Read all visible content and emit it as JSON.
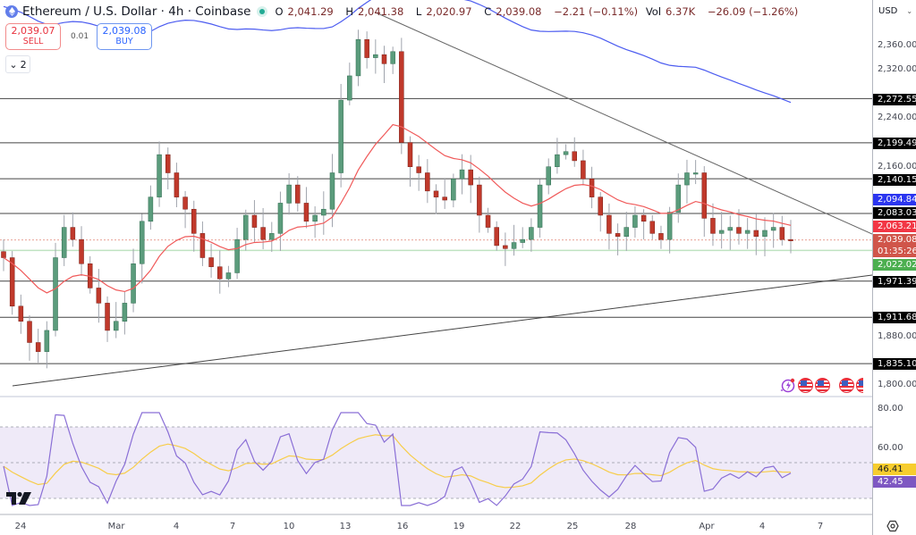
{
  "header": {
    "title": "Ethereum / U.S. Dollar · 4h · Coinbase",
    "open_label": "O",
    "open": "2,041.29",
    "high_label": "H",
    "high": "2,041.38",
    "low_label": "L",
    "low": "2,020.97",
    "close_label": "C",
    "close": "2,039.08",
    "change": "−2.21 (−0.11%)",
    "vol_label": "Vol",
    "vol": "6.37K",
    "vol_change": "−26.09 (−1.26%)"
  },
  "trade": {
    "sell_price": "2,039.07",
    "sell_label": "SELL",
    "spread": "0.01",
    "buy_price": "2,039.08",
    "buy_label": "BUY"
  },
  "collapse": {
    "count": "2"
  },
  "currency": "USD",
  "colors": {
    "up": "#5b9c7c",
    "down": "#c0392b",
    "ma_fast": "#f05a5a",
    "ma_slow": "#4c5cf0",
    "rsi": "#8a6fd6",
    "rsi_ma": "#f7cd4a",
    "rsi_band": "#efeaf8"
  },
  "price_axis": {
    "ticks": [
      "2,360.00",
      "2,320.00",
      "2,240.00",
      "2,160.00",
      "1,880.00",
      "1,800.00"
    ],
    "tags": [
      {
        "label": "2,272.55",
        "bg": "#000000"
      },
      {
        "label": "2,199.49",
        "bg": "#000000"
      },
      {
        "label": "2,140.15",
        "bg": "#000000"
      },
      {
        "label": "2,094.84",
        "bg": "#2b35f0"
      },
      {
        "label": "2,083.03",
        "bg": "#000000"
      },
      {
        "label": "2,063.21",
        "bg": "#f23645"
      },
      {
        "label": "2,039.08",
        "bg": "#d0554a"
      },
      {
        "label": "01:35:26",
        "bg": "#d0554a"
      },
      {
        "label": "2,022.02",
        "bg": "#4caf50"
      },
      {
        "label": "1,971.39",
        "bg": "#000000"
      },
      {
        "label": "1,911.68",
        "bg": "#000000"
      },
      {
        "label": "1,835.10",
        "bg": "#000000"
      }
    ]
  },
  "rsi_axis": {
    "ticks": [
      "80.00",
      "60.00"
    ],
    "rsi_ma_value": "46.41",
    "rsi_value": "42.45"
  },
  "time_axis": [
    "24",
    "Mar",
    "4",
    "7",
    "10",
    "13",
    "16",
    "19",
    "22",
    "25",
    "28",
    "Apr",
    "4",
    "7"
  ],
  "chart_data": {
    "type": "candlestick",
    "title": "Ethereum / U.S. Dollar · 4h · Coinbase",
    "xlabel": "",
    "ylabel": "USD",
    "ylim": [
      1790,
      2390
    ],
    "x_ticks": [
      "24",
      "Mar",
      "4",
      "7",
      "10",
      "13",
      "16",
      "19",
      "22",
      "25",
      "28",
      "Apr",
      "4",
      "7"
    ],
    "horizontal_levels": [
      2272.55,
      2199.49,
      2140.15,
      2083.03,
      1971.39,
      1911.68,
      1835.1
    ],
    "last_price": 2039.08,
    "bid_line": 2022.02,
    "ma_fast_last": 2063.21,
    "ma_slow_last": 2094.84,
    "trendlines": [
      {
        "name": "descending resistance",
        "from": [
          0.41,
          2395
        ],
        "to": [
          0.95,
          2055
        ]
      },
      {
        "name": "ascending support",
        "from": [
          0.015,
          1818
        ],
        "to": [
          0.95,
          1975
        ]
      }
    ],
    "close_path": [
      2010,
      1930,
      1905,
      1870,
      1855,
      1890,
      2010,
      2060,
      2040,
      2000,
      1960,
      1935,
      1890,
      1905,
      1935,
      2000,
      2070,
      2110,
      2180,
      2150,
      2110,
      2090,
      2050,
      2010,
      1995,
      1975,
      1985,
      2040,
      2080,
      2060,
      2040,
      2050,
      2100,
      2130,
      2100,
      2070,
      2080,
      2090,
      2150,
      2270,
      2310,
      2370,
      2340,
      2345,
      2330,
      2350,
      2200,
      2160,
      2150,
      2120,
      2110,
      2105,
      2140,
      2155,
      2130,
      2080,
      2060,
      2030,
      2025,
      2035,
      2040,
      2060,
      2130,
      2160,
      2180,
      2185,
      2170,
      2140,
      2110,
      2080,
      2050,
      2045,
      2060,
      2080,
      2070,
      2050,
      2040,
      2085,
      2130,
      2150,
      2150,
      2075,
      2050,
      2055,
      2060,
      2050,
      2055,
      2045,
      2055,
      2060,
      2040,
      2039
    ],
    "rsi": {
      "ylim": [
        20,
        90
      ],
      "overbought": 70,
      "mid": 50,
      "oversold": 30,
      "last": 42.45,
      "ma_last": 46.41
    }
  }
}
